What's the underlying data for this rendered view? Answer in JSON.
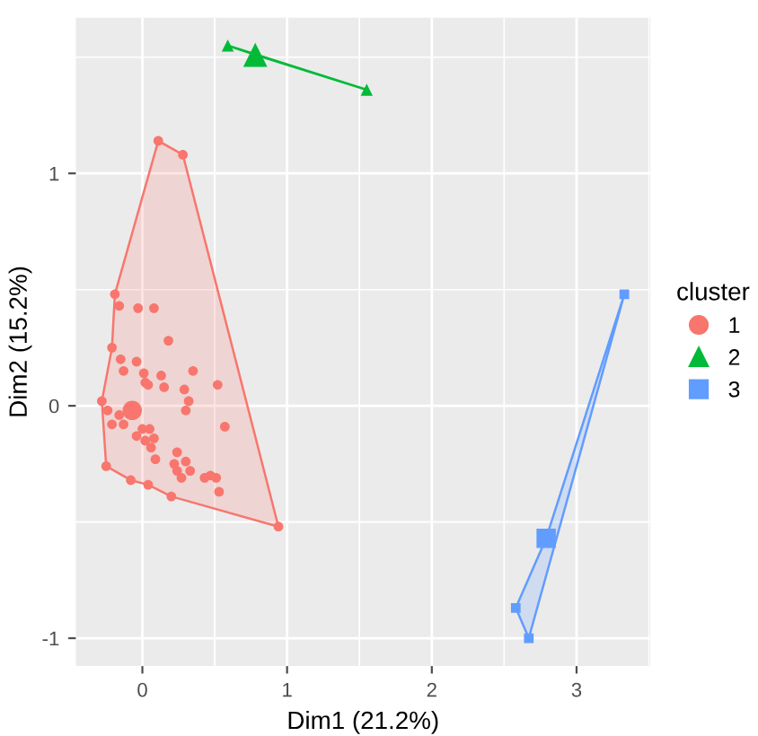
{
  "chart_data": {
    "type": "scatter",
    "xlabel": "Dim1 (21.2%)",
    "ylabel": "Dim2 (15.2%)",
    "legend_title": "cluster",
    "legend": "right",
    "grid": true,
    "xlim": [
      -0.46,
      3.51
    ],
    "ylim": [
      -1.12,
      1.67
    ],
    "xticks": [
      0,
      1,
      2,
      3
    ],
    "yticks": [
      -1,
      0,
      1
    ],
    "series": [
      {
        "name": "1",
        "color": "#f8766d",
        "marker": "circle",
        "x": [
          0.11,
          0.28,
          -0.19,
          -0.16,
          -0.03,
          0.08,
          0.18,
          -0.21,
          -0.15,
          -0.04,
          -0.13,
          0.01,
          0.13,
          0.35,
          0.02,
          0.04,
          0.15,
          0.29,
          0.52,
          0.32,
          -0.28,
          0.3,
          -0.24,
          -0.07,
          -0.16,
          -0.21,
          -0.13,
          0.57,
          0.0,
          0.05,
          -0.04,
          0.02,
          0.08,
          0.06,
          0.24,
          0.09,
          0.22,
          0.3,
          -0.25,
          0.24,
          0.33,
          0.27,
          0.43,
          0.47,
          0.51,
          -0.08,
          0.04,
          0.53,
          0.2,
          0.94
        ],
        "values": [
          1.14,
          1.08,
          0.48,
          0.43,
          0.42,
          0.42,
          0.28,
          0.25,
          0.2,
          0.19,
          0.15,
          0.14,
          0.13,
          0.15,
          0.1,
          0.09,
          0.08,
          0.07,
          0.09,
          0.02,
          0.02,
          -0.02,
          -0.02,
          -0.02,
          -0.04,
          -0.08,
          -0.08,
          -0.09,
          -0.1,
          -0.1,
          -0.13,
          -0.15,
          -0.14,
          -0.18,
          -0.2,
          -0.23,
          -0.25,
          -0.24,
          -0.26,
          -0.28,
          -0.28,
          -0.31,
          -0.31,
          -0.3,
          -0.31,
          -0.32,
          -0.34,
          -0.37,
          -0.39,
          -0.52
        ],
        "sizes": [
          0.25,
          0.25,
          0.25,
          0.25,
          0.25,
          0.25,
          0.25,
          0.25,
          0.25,
          0.25,
          0.25,
          0.25,
          0.25,
          0.25,
          0.25,
          0.25,
          0.25,
          0.25,
          0.25,
          0.25,
          0.25,
          0.25,
          0.25,
          1,
          0.25,
          0.25,
          0.25,
          0.25,
          0.25,
          0.25,
          0.25,
          0.25,
          0.25,
          0.25,
          0.25,
          0.25,
          0.25,
          0.25,
          0.25,
          0.25,
          0.25,
          0.25,
          0.25,
          0.25,
          0.25,
          0.25,
          0.25,
          0.25,
          0.25,
          0.25
        ]
      },
      {
        "type": "area",
        "color": "#f8766d",
        "x": [
          0.11,
          0.28,
          0.94,
          0.2,
          0.04,
          -0.08,
          -0.25,
          -0.28,
          -0.21,
          -0.19,
          0.11
        ],
        "values": [
          1.14,
          1.08,
          -0.52,
          -0.39,
          -0.34,
          -0.32,
          -0.26,
          0.02,
          0.25,
          0.48,
          1.14
        ]
      },
      {
        "type": "area",
        "color": "#00ba38",
        "x": [
          0.59,
          0.78,
          1.55,
          0.59
        ],
        "values": [
          1.55,
          1.51,
          1.36,
          1.55
        ]
      },
      {
        "type": "area",
        "color": "#619cff",
        "x": [
          3.33,
          2.79,
          2.58,
          2.67,
          3.33
        ],
        "values": [
          0.48,
          -0.57,
          -0.87,
          -1.0,
          0.48
        ]
      },
      {
        "name": "2",
        "color": "#00ba38",
        "marker": "triangle",
        "x": [
          0.59,
          0.78,
          1.55
        ],
        "values": [
          1.55,
          1.51,
          1.36
        ],
        "sizes": [
          0.25,
          1,
          0.25
        ]
      },
      {
        "name": "3",
        "color": "#619cff",
        "marker": "square",
        "x": [
          3.33,
          2.79,
          2.58,
          2.67
        ],
        "values": [
          0.48,
          -0.57,
          -0.87,
          -1.0
        ],
        "sizes": [
          0.25,
          1,
          0.25,
          0.25
        ]
      }
    ]
  }
}
